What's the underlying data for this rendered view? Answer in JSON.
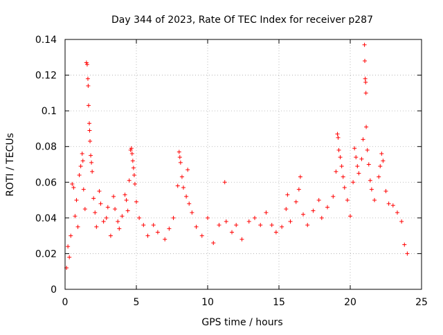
{
  "chart_data": {
    "type": "scatter",
    "title": "Day 344 of 2023, Rate Of TEC Index for receiver p287",
    "xlabel": "GPS time / hours",
    "ylabel": "ROTI / TECUs",
    "xlim": [
      0,
      25
    ],
    "ylim": [
      0,
      0.14
    ],
    "x_ticks": [
      0,
      5,
      10,
      15,
      20,
      25
    ],
    "x_tick_labels": [
      "0",
      "5",
      "10",
      "15",
      "20",
      "25"
    ],
    "y_ticks": [
      0,
      0.02,
      0.04,
      0.06,
      0.08,
      0.1,
      0.12,
      0.14
    ],
    "y_tick_labels": [
      "0",
      "0.02",
      "0.04",
      "0.06",
      "0.08",
      "0.1",
      "0.12",
      "0.14"
    ],
    "grid": true,
    "marker": "+",
    "color": "#ff0000",
    "series": [
      {
        "points": [
          [
            0.1,
            0.012
          ],
          [
            0.2,
            0.024
          ],
          [
            0.3,
            0.018
          ],
          [
            0.4,
            0.03
          ],
          [
            0.5,
            0.059
          ],
          [
            0.6,
            0.057
          ],
          [
            0.7,
            0.041
          ],
          [
            0.8,
            0.05
          ],
          [
            0.9,
            0.035
          ],
          [
            1.0,
            0.064
          ],
          [
            1.1,
            0.069
          ],
          [
            1.2,
            0.076
          ],
          [
            1.25,
            0.072
          ],
          [
            1.3,
            0.056
          ],
          [
            1.4,
            0.045
          ],
          [
            1.5,
            0.127
          ],
          [
            1.55,
            0.126
          ],
          [
            1.6,
            0.118
          ],
          [
            1.62,
            0.114
          ],
          [
            1.65,
            0.103
          ],
          [
            1.7,
            0.093
          ],
          [
            1.72,
            0.089
          ],
          [
            1.75,
            0.083
          ],
          [
            1.8,
            0.075
          ],
          [
            1.85,
            0.071
          ],
          [
            1.9,
            0.066
          ],
          [
            2.0,
            0.051
          ],
          [
            2.1,
            0.043
          ],
          [
            2.2,
            0.035
          ],
          [
            2.4,
            0.055
          ],
          [
            2.5,
            0.048
          ],
          [
            2.7,
            0.038
          ],
          [
            2.9,
            0.04
          ],
          [
            3.0,
            0.046
          ],
          [
            3.2,
            0.03
          ],
          [
            3.4,
            0.052
          ],
          [
            3.5,
            0.045
          ],
          [
            3.7,
            0.038
          ],
          [
            3.8,
            0.034
          ],
          [
            4.0,
            0.041
          ],
          [
            4.2,
            0.053
          ],
          [
            4.3,
            0.05
          ],
          [
            4.4,
            0.044
          ],
          [
            4.5,
            0.061
          ],
          [
            4.6,
            0.078
          ],
          [
            4.65,
            0.079
          ],
          [
            4.7,
            0.076
          ],
          [
            4.75,
            0.072
          ],
          [
            4.8,
            0.068
          ],
          [
            4.85,
            0.064
          ],
          [
            4.9,
            0.059
          ],
          [
            5.0,
            0.049
          ],
          [
            5.2,
            0.04
          ],
          [
            5.5,
            0.036
          ],
          [
            5.8,
            0.03
          ],
          [
            6.2,
            0.036
          ],
          [
            6.5,
            0.032
          ],
          [
            7.0,
            0.028
          ],
          [
            7.3,
            0.034
          ],
          [
            7.6,
            0.04
          ],
          [
            7.9,
            0.058
          ],
          [
            8.0,
            0.077
          ],
          [
            8.05,
            0.074
          ],
          [
            8.1,
            0.071
          ],
          [
            8.2,
            0.063
          ],
          [
            8.3,
            0.057
          ],
          [
            8.5,
            0.052
          ],
          [
            8.6,
            0.067
          ],
          [
            8.7,
            0.048
          ],
          [
            8.9,
            0.043
          ],
          [
            9.2,
            0.035
          ],
          [
            9.6,
            0.03
          ],
          [
            10.0,
            0.04
          ],
          [
            10.4,
            0.026
          ],
          [
            10.8,
            0.036
          ],
          [
            11.2,
            0.06
          ],
          [
            11.3,
            0.038
          ],
          [
            11.7,
            0.032
          ],
          [
            12.0,
            0.036
          ],
          [
            12.4,
            0.028
          ],
          [
            12.9,
            0.038
          ],
          [
            13.3,
            0.04
          ],
          [
            13.7,
            0.036
          ],
          [
            14.1,
            0.043
          ],
          [
            14.5,
            0.036
          ],
          [
            14.8,
            0.032
          ],
          [
            15.2,
            0.035
          ],
          [
            15.5,
            0.045
          ],
          [
            15.6,
            0.053
          ],
          [
            15.8,
            0.038
          ],
          [
            16.2,
            0.049
          ],
          [
            16.4,
            0.056
          ],
          [
            16.5,
            0.063
          ],
          [
            16.7,
            0.042
          ],
          [
            17.0,
            0.036
          ],
          [
            17.4,
            0.044
          ],
          [
            17.8,
            0.05
          ],
          [
            18.0,
            0.04
          ],
          [
            18.4,
            0.046
          ],
          [
            18.8,
            0.052
          ],
          [
            19.0,
            0.066
          ],
          [
            19.1,
            0.087
          ],
          [
            19.15,
            0.085
          ],
          [
            19.2,
            0.078
          ],
          [
            19.3,
            0.074
          ],
          [
            19.4,
            0.069
          ],
          [
            19.5,
            0.063
          ],
          [
            19.6,
            0.057
          ],
          [
            19.8,
            0.05
          ],
          [
            20.0,
            0.041
          ],
          [
            20.2,
            0.06
          ],
          [
            20.3,
            0.079
          ],
          [
            20.4,
            0.074
          ],
          [
            20.5,
            0.069
          ],
          [
            20.6,
            0.065
          ],
          [
            20.8,
            0.073
          ],
          [
            20.9,
            0.084
          ],
          [
            21.0,
            0.137
          ],
          [
            21.02,
            0.128
          ],
          [
            21.05,
            0.118
          ],
          [
            21.08,
            0.116
          ],
          [
            21.1,
            0.11
          ],
          [
            21.12,
            0.091
          ],
          [
            21.2,
            0.078
          ],
          [
            21.3,
            0.07
          ],
          [
            21.4,
            0.061
          ],
          [
            21.5,
            0.056
          ],
          [
            21.7,
            0.05
          ],
          [
            22.0,
            0.063
          ],
          [
            22.1,
            0.069
          ],
          [
            22.2,
            0.076
          ],
          [
            22.3,
            0.072
          ],
          [
            22.5,
            0.055
          ],
          [
            22.7,
            0.048
          ],
          [
            23.0,
            0.047
          ],
          [
            23.3,
            0.043
          ],
          [
            23.6,
            0.038
          ],
          [
            23.8,
            0.025
          ],
          [
            24.0,
            0.02
          ]
        ]
      }
    ]
  }
}
